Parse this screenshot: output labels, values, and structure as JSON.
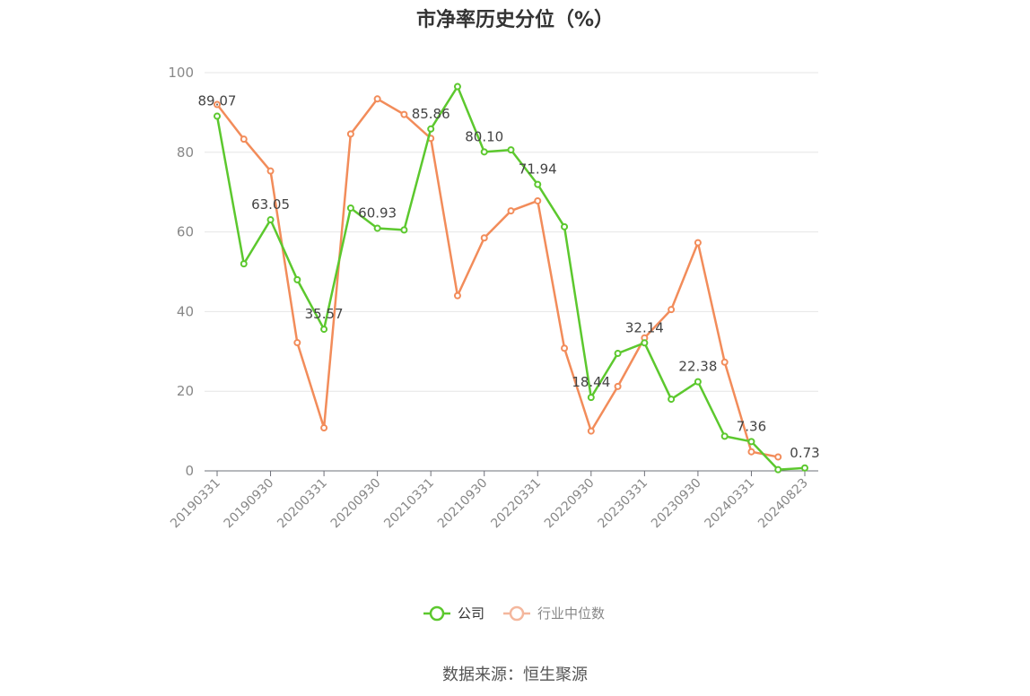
{
  "chart_data": {
    "type": "line",
    "title": "市净率历史分位（%）",
    "xlabel": "",
    "ylabel": "",
    "ylim": [
      0,
      100
    ],
    "yticks": [
      0,
      20,
      40,
      60,
      80,
      100
    ],
    "grid": true,
    "legend_position": "bottom",
    "x": [
      "20190331",
      "20190630",
      "20190930",
      "20191231",
      "20200331",
      "20200630",
      "20200930",
      "20201231",
      "20210331",
      "20210630",
      "20210930",
      "20211231",
      "20220331",
      "20220630",
      "20220930",
      "20221231",
      "20230331",
      "20230630",
      "20230930",
      "20231231",
      "20240331",
      "20240630",
      "20240823"
    ],
    "xtick_labels": [
      "20190331",
      "20190930",
      "20200331",
      "20200930",
      "20210331",
      "20210930",
      "20220331",
      "20220930",
      "20230331",
      "20230930",
      "20240331",
      "20240823"
    ],
    "series": [
      {
        "name": "公司",
        "color": "#5cc82e",
        "values": [
          89.07,
          52.0,
          63.05,
          48.0,
          35.57,
          66.0,
          60.93,
          60.5,
          85.86,
          96.5,
          80.1,
          80.6,
          71.94,
          61.3,
          18.44,
          29.5,
          32.14,
          18.0,
          22.38,
          8.7,
          7.36,
          0.3,
          0.73
        ],
        "labels": {
          "0": "89.07",
          "2": "63.05",
          "4": "35.57",
          "6": "60.93",
          "8": "85.86",
          "10": "80.10",
          "12": "71.94",
          "14": "18.44",
          "16": "32.14",
          "18": "22.38",
          "20": "7.36",
          "22": "0.73"
        }
      },
      {
        "name": "行业中位数",
        "color": "#f28c5a",
        "values": [
          92.0,
          83.3,
          75.3,
          32.2,
          10.8,
          84.6,
          93.4,
          89.5,
          83.5,
          44.0,
          58.5,
          65.3,
          67.8,
          30.8,
          10.0,
          21.2,
          33.4,
          40.5,
          57.3,
          27.3,
          4.8,
          3.5,
          null
        ]
      }
    ]
  },
  "source_text": "数据来源：恒生聚源"
}
